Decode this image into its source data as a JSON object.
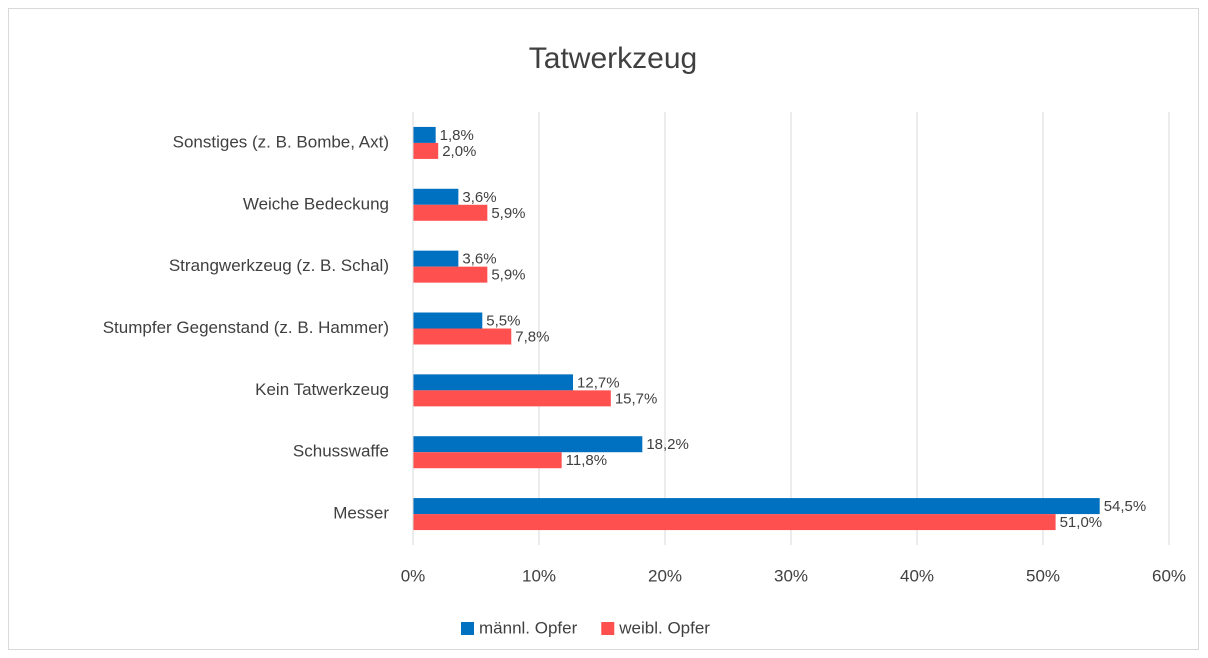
{
  "chart_data": {
    "type": "bar",
    "orientation": "horizontal",
    "title": "Tatwerkzeug",
    "categories": [
      "Sonstiges (z. B. Bombe, Axt)",
      "Weiche Bedeckung",
      "Strangwerkzeug (z. B. Schal)",
      "Stumpfer Gegenstand (z. B. Hammer)",
      "Kein Tatwerkzeug",
      "Schusswaffe",
      "Messer"
    ],
    "series": [
      {
        "name": "männl. Opfer",
        "color": "#0070c0",
        "values": [
          1.8,
          3.6,
          3.6,
          5.5,
          12.7,
          18.2,
          54.5
        ],
        "value_labels": [
          "1,8%",
          "3,6%",
          "3,6%",
          "5,5%",
          "12,7%",
          "18,2%",
          "54,5%"
        ]
      },
      {
        "name": "weibl. Opfer",
        "color": "#ff5050",
        "values": [
          2.0,
          5.9,
          5.9,
          7.8,
          15.7,
          11.8,
          51.0
        ],
        "value_labels": [
          "2,0%",
          "5,9%",
          "5,9%",
          "7,8%",
          "15,7%",
          "11,8%",
          "51,0%"
        ]
      }
    ],
    "xlim": [
      0,
      60
    ],
    "xticks": [
      {
        "value": 0,
        "label": "0%"
      },
      {
        "value": 10,
        "label": "10%"
      },
      {
        "value": 20,
        "label": "20%"
      },
      {
        "value": 30,
        "label": "30%"
      },
      {
        "value": 40,
        "label": "40%"
      },
      {
        "value": 50,
        "label": "50%"
      },
      {
        "value": 60,
        "label": "60%"
      }
    ],
    "grid": true,
    "legend": "bottom"
  }
}
